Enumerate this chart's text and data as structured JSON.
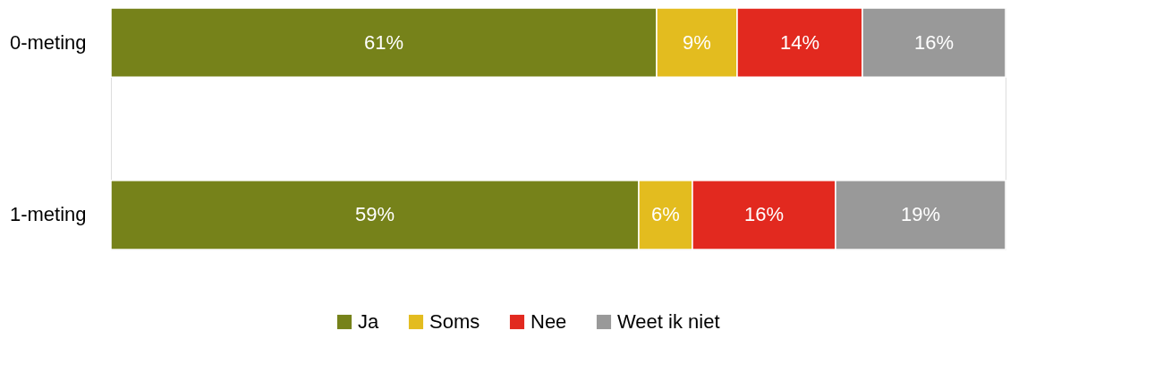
{
  "chart_data": {
    "type": "bar",
    "orientation": "horizontal",
    "stacked": true,
    "categories": [
      "0-meting",
      "1-meting"
    ],
    "series": [
      {
        "name": "Ja",
        "color": "#76821a",
        "values": [
          61,
          59
        ],
        "value_labels": [
          "61%",
          "59%"
        ]
      },
      {
        "name": "Soms",
        "color": "#e3bc1f",
        "values": [
          9,
          6
        ],
        "value_labels": [
          "9%",
          "6%"
        ]
      },
      {
        "name": "Nee",
        "color": "#e2291f",
        "values": [
          14,
          16
        ],
        "value_labels": [
          "14%",
          "16%"
        ]
      },
      {
        "name": "Weet ik niet",
        "color": "#999999",
        "values": [
          16,
          19
        ],
        "value_labels": [
          "16%",
          "19%"
        ]
      }
    ],
    "legend": "bottom",
    "tick_labels": "y",
    "grid": false
  }
}
